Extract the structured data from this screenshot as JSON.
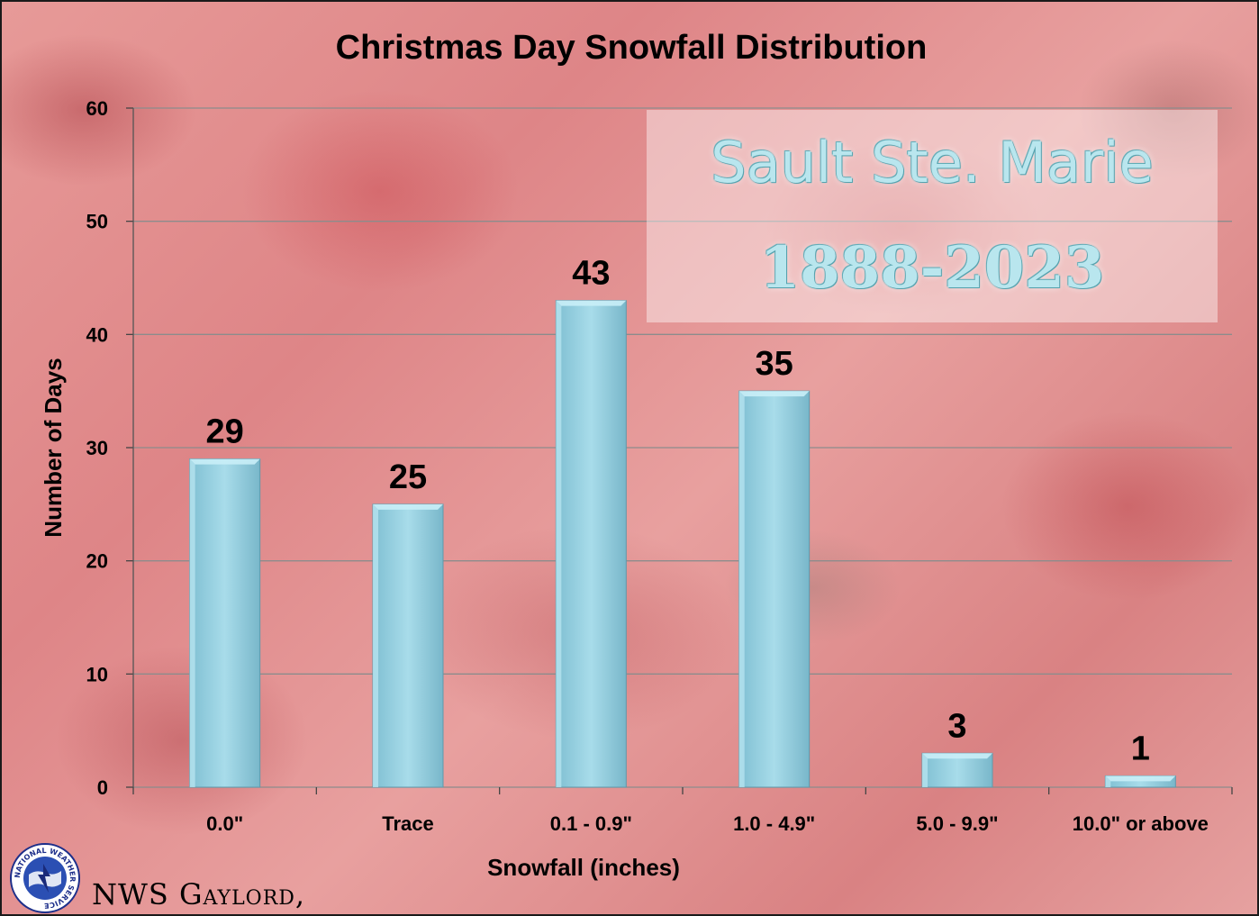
{
  "title": "Christmas Day Snowfall Distribution",
  "station": {
    "name": "Sault Ste. Marie",
    "years": "1888-2023"
  },
  "credit": "NWS Gaylord,",
  "logo_text": "NATIONAL WEATHER SERVICE",
  "colors": {
    "bar": "#9fd6e6",
    "grid": "#8c8c8c",
    "station_text": "#b9e6ee"
  },
  "chart_data": {
    "type": "bar",
    "title": "Christmas Day Snowfall Distribution",
    "xlabel": "Snowfall (inches)",
    "ylabel": "Number of Days",
    "categories": [
      "0.0\"",
      "Trace",
      "0.1 - 0.9\"",
      "1.0 - 4.9\"",
      "5.0 - 9.9\"",
      "10.0\" or above"
    ],
    "values": [
      29,
      25,
      43,
      35,
      3,
      1
    ],
    "ylim": [
      0,
      60
    ],
    "yticks": [
      0,
      10,
      20,
      30,
      40,
      50,
      60
    ],
    "grid": true,
    "data_labels": true
  }
}
